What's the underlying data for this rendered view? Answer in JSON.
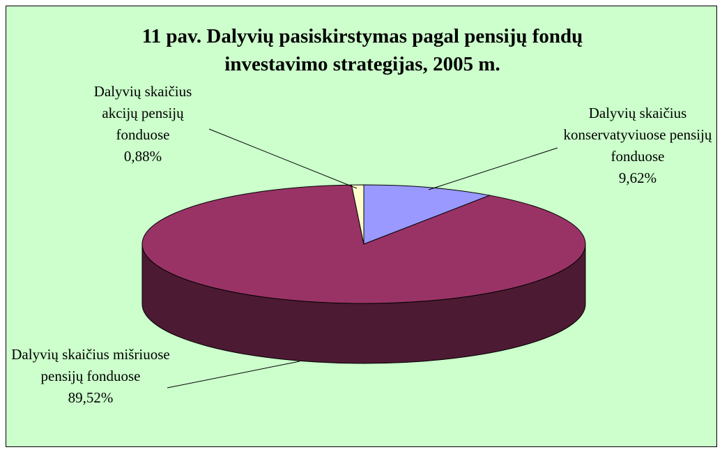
{
  "chart_data": {
    "type": "pie3d",
    "title": "11 pav. Dalyvių pasiskirstymas pagal pensijų fondų investavimo strategijas, 2005 m.",
    "categories": [
      "Dalyvių skaičius konservatyviuose pensijų fonduose",
      "Dalyvių skaičius mišriuose pensijų fonduose",
      "Dalyvių skaičius akcijų pensijų fonduose"
    ],
    "values": [
      9.62,
      89.52,
      0.88
    ],
    "value_labels": [
      "9,62%",
      "89,52%",
      "0,88%"
    ],
    "colors": [
      "#9999ff",
      "#993366",
      "#ffffcc"
    ],
    "background": "#ccffcc"
  }
}
